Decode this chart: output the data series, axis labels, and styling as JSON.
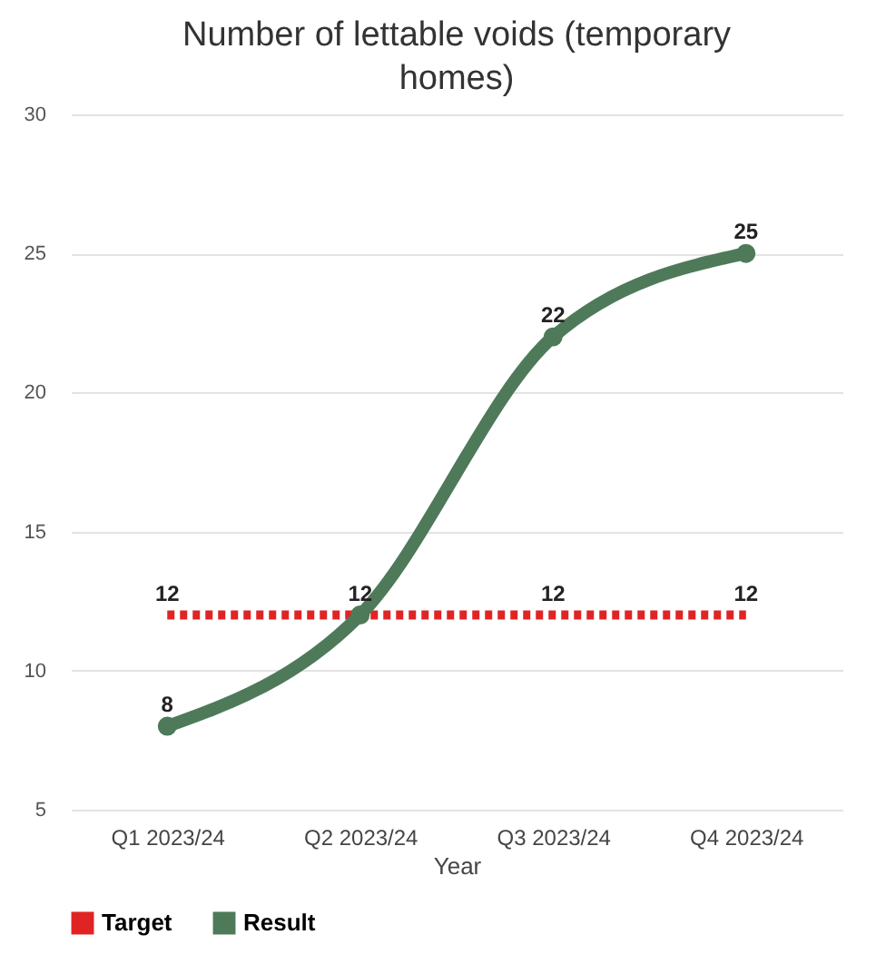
{
  "chart_data": {
    "type": "line",
    "title": "Number of lettable voids (temporary homes)",
    "xlabel": "Year",
    "categories": [
      "Q1 2023/24",
      "Q2 2023/24",
      "Q3 2023/24",
      "Q4 2023/24"
    ],
    "series": [
      {
        "name": "Target",
        "color": "#e02424",
        "values": [
          12,
          12,
          12,
          12
        ],
        "value_labels": [
          "12",
          null,
          "12",
          "12"
        ],
        "line_style": "dotted",
        "marker": "none"
      },
      {
        "name": "Result",
        "color": "#4e7a5a",
        "values": [
          8,
          12,
          22,
          25
        ],
        "value_labels": [
          "8",
          "12",
          "22",
          "25"
        ],
        "line_style": "solid",
        "marker": "circle"
      }
    ],
    "ylim": [
      5,
      30
    ],
    "yticks": [
      5,
      10,
      15,
      20,
      25,
      30
    ],
    "grid": "y",
    "legend": "bottom"
  }
}
